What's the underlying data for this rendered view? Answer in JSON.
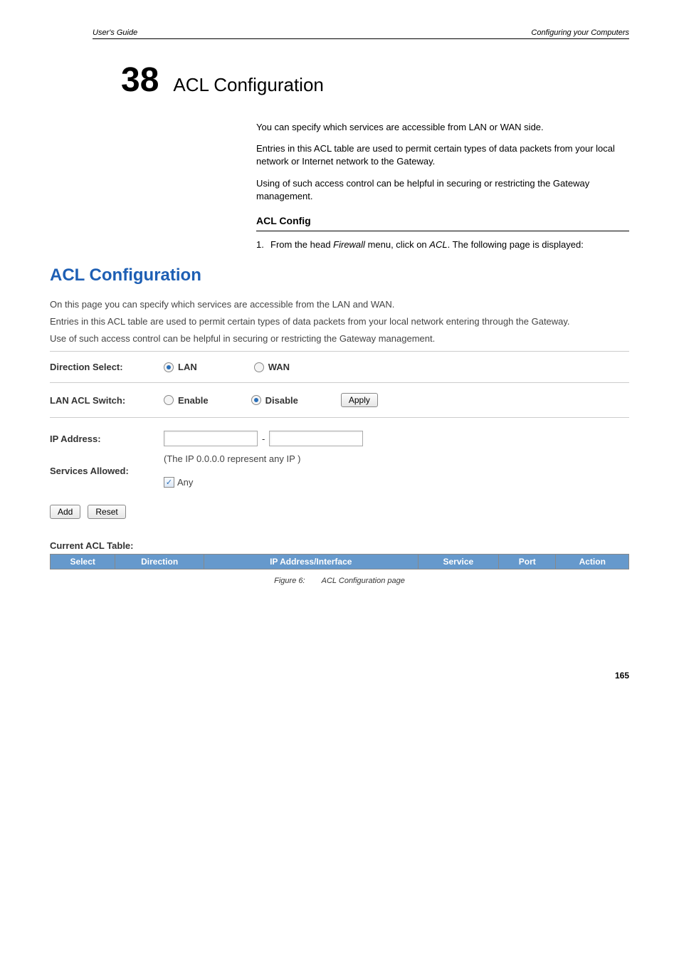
{
  "header": {
    "left": "User's Guide",
    "right": "Configuring your Computers"
  },
  "chapter": {
    "number": "38",
    "title": "ACL Configuration"
  },
  "intro": {
    "p1": "You can specify which services are accessible from LAN or WAN side.",
    "p2": "Entries in this ACL table are used to permit certain types of data packets from your local network or Internet network to the Gateway.",
    "p3": "Using of such access control can be helpful in securing or restricting the Gateway management."
  },
  "section": {
    "heading": "ACL Config",
    "step_num": "1.",
    "step_text_a": "From the head ",
    "step_text_b": " menu, click on ",
    "step_text_c": ". The following page is displayed:",
    "firewall": "Firewall",
    "acl": "ACL"
  },
  "screenshot": {
    "title": "ACL Configuration",
    "intro1": "On this page you can specify which services are accessible from the LAN and WAN.",
    "intro2": "Entries in this ACL table are used to permit certain types of data packets from your local network entering through the Gateway.",
    "intro3": "Use of such access control can be helpful in securing or restricting the Gateway management.",
    "direction_select_label": "Direction Select:",
    "lan_label": "LAN",
    "wan_label": "WAN",
    "lan_acl_switch_label": "LAN ACL Switch:",
    "enable_label": "Enable",
    "disable_label": "Disable",
    "apply_label": "Apply",
    "ip_address_label": "IP Address:",
    "ip_hint": "(The IP 0.0.0.0 represent any IP )",
    "services_allowed_label": "Services Allowed:",
    "any_label": "Any",
    "add_label": "Add",
    "reset_label": "Reset",
    "table_title": "Current ACL Table:",
    "cols": {
      "select": "Select",
      "direction": "Direction",
      "ip": "IP Address/Interface",
      "service": "Service",
      "port": "Port",
      "action": "Action"
    },
    "col_widths": {
      "select": "70px",
      "direction": "100px",
      "ip": "260px",
      "service": "90px",
      "port": "60px",
      "action": "80px"
    },
    "colors": {
      "header_bg": "#6699cc",
      "title_color": "#1e5fb4"
    }
  },
  "caption": {
    "label": "Figure 6:",
    "text": "ACL  Configuration  page"
  },
  "page_number": "165"
}
